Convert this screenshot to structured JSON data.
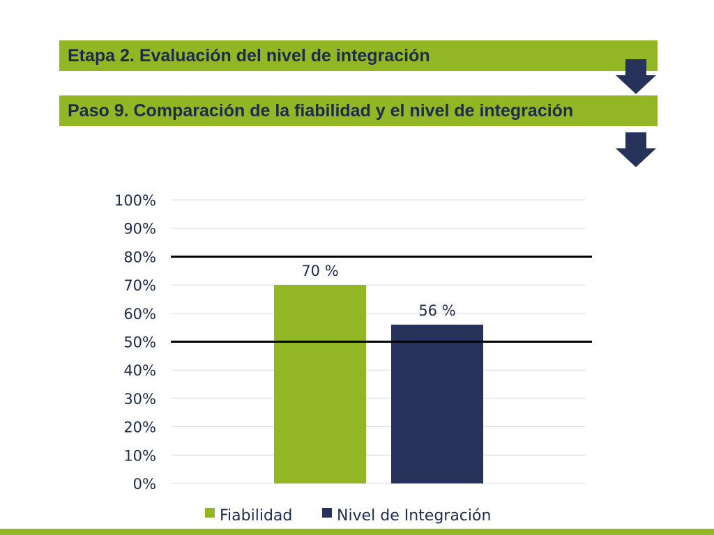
{
  "header": {
    "stage_title": "Etapa 2. Evaluación del nivel de integración",
    "step_title": "Paso 9. Comparación de la fiabilidad y el nivel de integración"
  },
  "colors": {
    "accent_green": "#93b625",
    "navy": "#263259",
    "text_navy": "#1e2b4d",
    "gridline": "#d9d9d9",
    "threshold_line": "#000000"
  },
  "icons": {
    "flow_arrow": "down-arrow-icon"
  },
  "chart_data": {
    "type": "bar",
    "categories": [
      ""
    ],
    "series": [
      {
        "name": "Fiabilidad",
        "values": [
          70
        ],
        "data_label": "70 %",
        "color": "#93b625"
      },
      {
        "name": "Nivel de Integración",
        "values": [
          56
        ],
        "data_label": "56 %",
        "color": "#263259"
      }
    ],
    "ylim": [
      0,
      100
    ],
    "yticks": [
      "0%",
      "10%",
      "20%",
      "30%",
      "40%",
      "50%",
      "60%",
      "70%",
      "80%",
      "90%",
      "100%"
    ],
    "reference_lines": [
      50,
      80
    ],
    "grid": true,
    "legend_position": "bottom",
    "title": "",
    "xlabel": "",
    "ylabel": ""
  }
}
